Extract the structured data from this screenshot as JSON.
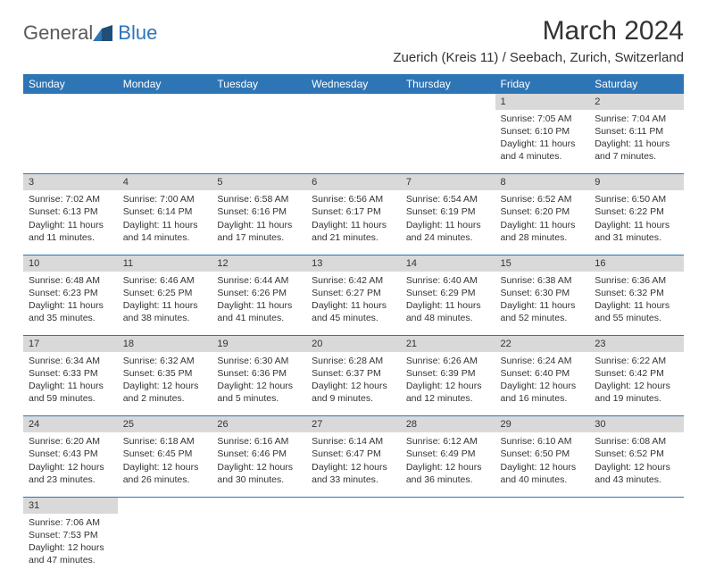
{
  "brand": {
    "name1": "General",
    "name2": "Blue",
    "accent": "#2e75b6",
    "gray": "#5a5a5a"
  },
  "title": "March 2024",
  "location": "Zuerich (Kreis 11) / Seebach, Zurich, Switzerland",
  "header_bg": "#2e75b6",
  "header_fg": "#ffffff",
  "daynum_bg": "#d9d9d9",
  "border_color": "#2e75b6",
  "weekdays": [
    "Sunday",
    "Monday",
    "Tuesday",
    "Wednesday",
    "Thursday",
    "Friday",
    "Saturday"
  ],
  "weeks": [
    [
      null,
      null,
      null,
      null,
      null,
      {
        "n": "1",
        "sr": "7:05 AM",
        "ss": "6:10 PM",
        "dl": "11 hours and 4 minutes."
      },
      {
        "n": "2",
        "sr": "7:04 AM",
        "ss": "6:11 PM",
        "dl": "11 hours and 7 minutes."
      }
    ],
    [
      {
        "n": "3",
        "sr": "7:02 AM",
        "ss": "6:13 PM",
        "dl": "11 hours and 11 minutes."
      },
      {
        "n": "4",
        "sr": "7:00 AM",
        "ss": "6:14 PM",
        "dl": "11 hours and 14 minutes."
      },
      {
        "n": "5",
        "sr": "6:58 AM",
        "ss": "6:16 PM",
        "dl": "11 hours and 17 minutes."
      },
      {
        "n": "6",
        "sr": "6:56 AM",
        "ss": "6:17 PM",
        "dl": "11 hours and 21 minutes."
      },
      {
        "n": "7",
        "sr": "6:54 AM",
        "ss": "6:19 PM",
        "dl": "11 hours and 24 minutes."
      },
      {
        "n": "8",
        "sr": "6:52 AM",
        "ss": "6:20 PM",
        "dl": "11 hours and 28 minutes."
      },
      {
        "n": "9",
        "sr": "6:50 AM",
        "ss": "6:22 PM",
        "dl": "11 hours and 31 minutes."
      }
    ],
    [
      {
        "n": "10",
        "sr": "6:48 AM",
        "ss": "6:23 PM",
        "dl": "11 hours and 35 minutes."
      },
      {
        "n": "11",
        "sr": "6:46 AM",
        "ss": "6:25 PM",
        "dl": "11 hours and 38 minutes."
      },
      {
        "n": "12",
        "sr": "6:44 AM",
        "ss": "6:26 PM",
        "dl": "11 hours and 41 minutes."
      },
      {
        "n": "13",
        "sr": "6:42 AM",
        "ss": "6:27 PM",
        "dl": "11 hours and 45 minutes."
      },
      {
        "n": "14",
        "sr": "6:40 AM",
        "ss": "6:29 PM",
        "dl": "11 hours and 48 minutes."
      },
      {
        "n": "15",
        "sr": "6:38 AM",
        "ss": "6:30 PM",
        "dl": "11 hours and 52 minutes."
      },
      {
        "n": "16",
        "sr": "6:36 AM",
        "ss": "6:32 PM",
        "dl": "11 hours and 55 minutes."
      }
    ],
    [
      {
        "n": "17",
        "sr": "6:34 AM",
        "ss": "6:33 PM",
        "dl": "11 hours and 59 minutes."
      },
      {
        "n": "18",
        "sr": "6:32 AM",
        "ss": "6:35 PM",
        "dl": "12 hours and 2 minutes."
      },
      {
        "n": "19",
        "sr": "6:30 AM",
        "ss": "6:36 PM",
        "dl": "12 hours and 5 minutes."
      },
      {
        "n": "20",
        "sr": "6:28 AM",
        "ss": "6:37 PM",
        "dl": "12 hours and 9 minutes."
      },
      {
        "n": "21",
        "sr": "6:26 AM",
        "ss": "6:39 PM",
        "dl": "12 hours and 12 minutes."
      },
      {
        "n": "22",
        "sr": "6:24 AM",
        "ss": "6:40 PM",
        "dl": "12 hours and 16 minutes."
      },
      {
        "n": "23",
        "sr": "6:22 AM",
        "ss": "6:42 PM",
        "dl": "12 hours and 19 minutes."
      }
    ],
    [
      {
        "n": "24",
        "sr": "6:20 AM",
        "ss": "6:43 PM",
        "dl": "12 hours and 23 minutes."
      },
      {
        "n": "25",
        "sr": "6:18 AM",
        "ss": "6:45 PM",
        "dl": "12 hours and 26 minutes."
      },
      {
        "n": "26",
        "sr": "6:16 AM",
        "ss": "6:46 PM",
        "dl": "12 hours and 30 minutes."
      },
      {
        "n": "27",
        "sr": "6:14 AM",
        "ss": "6:47 PM",
        "dl": "12 hours and 33 minutes."
      },
      {
        "n": "28",
        "sr": "6:12 AM",
        "ss": "6:49 PM",
        "dl": "12 hours and 36 minutes."
      },
      {
        "n": "29",
        "sr": "6:10 AM",
        "ss": "6:50 PM",
        "dl": "12 hours and 40 minutes."
      },
      {
        "n": "30",
        "sr": "6:08 AM",
        "ss": "6:52 PM",
        "dl": "12 hours and 43 minutes."
      }
    ],
    [
      {
        "n": "31",
        "sr": "7:06 AM",
        "ss": "7:53 PM",
        "dl": "12 hours and 47 minutes."
      },
      null,
      null,
      null,
      null,
      null,
      null
    ]
  ],
  "labels": {
    "sunrise": "Sunrise:",
    "sunset": "Sunset:",
    "daylight": "Daylight:"
  }
}
